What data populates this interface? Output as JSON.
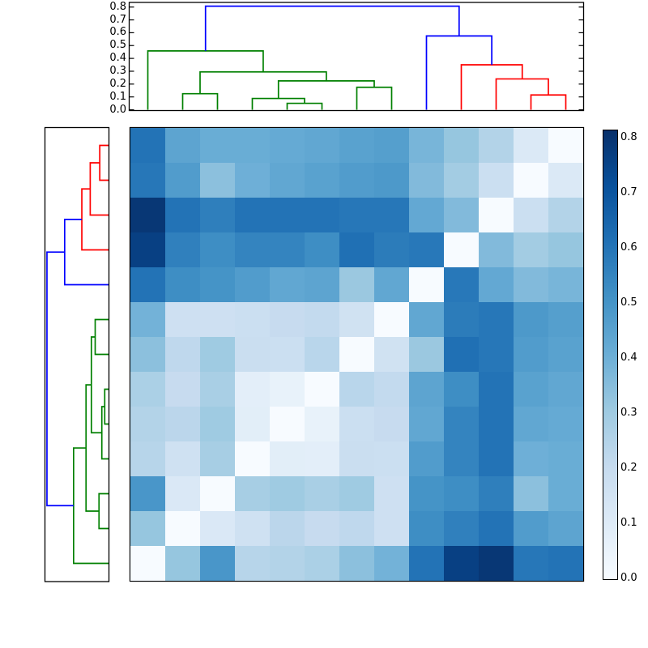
{
  "figure_type": "clustered-distance-heatmap",
  "colors": {
    "background": "#ffffff",
    "frame": "#000000",
    "link_blue": "#0000ff",
    "link_green": "#008000",
    "link_red": "#ff0000"
  },
  "top_axis": {
    "tick_values": [
      0.0,
      0.1,
      0.2,
      0.3,
      0.4,
      0.5,
      0.6,
      0.7,
      0.8
    ],
    "tick_labels": [
      "0.0",
      "0.1",
      "0.2",
      "0.3",
      "0.4",
      "0.5",
      "0.6",
      "0.7",
      "0.8"
    ]
  },
  "colorbar": {
    "tick_values": [
      0.0,
      0.1,
      0.2,
      0.3,
      0.4,
      0.5,
      0.6,
      0.7,
      0.8
    ],
    "tick_labels": [
      "0.0",
      "0.1",
      "0.2",
      "0.3",
      "0.4",
      "0.5",
      "0.6",
      "0.7",
      "0.8"
    ],
    "vmin": 0.0,
    "vmax": 0.81,
    "colormap": "Blues"
  },
  "chart_data": {
    "type": "heatmap",
    "title": "",
    "xlabel": "",
    "ylabel": "",
    "colormap": "Blues",
    "vmin": 0.0,
    "vmax": 0.81,
    "grid": false,
    "colormap_stops": [
      [
        247,
        251,
        255
      ],
      [
        222,
        235,
        247
      ],
      [
        198,
        219,
        239
      ],
      [
        158,
        202,
        225
      ],
      [
        107,
        174,
        214
      ],
      [
        66,
        146,
        198
      ],
      [
        33,
        113,
        181
      ],
      [
        8,
        81,
        156
      ],
      [
        8,
        48,
        107
      ]
    ],
    "n_leaves": 13,
    "col_leaf_order": [
      0,
      1,
      2,
      3,
      4,
      5,
      6,
      7,
      8,
      9,
      10,
      11,
      12
    ],
    "row_leaf_order": [
      12,
      11,
      10,
      9,
      8,
      7,
      6,
      5,
      4,
      3,
      2,
      1,
      0
    ],
    "distance_matrix": [
      [
        0.0,
        0.32,
        0.49,
        0.24,
        0.25,
        0.27,
        0.34,
        0.39,
        0.6,
        0.76,
        0.79,
        0.59,
        0.6
      ],
      [
        0.32,
        0.0,
        0.12,
        0.165,
        0.23,
        0.2,
        0.22,
        0.17,
        0.52,
        0.56,
        0.6,
        0.47,
        0.44
      ],
      [
        0.49,
        0.12,
        0.0,
        0.28,
        0.3,
        0.275,
        0.3,
        0.17,
        0.5,
        0.52,
        0.565,
        0.34,
        0.41
      ],
      [
        0.24,
        0.165,
        0.28,
        0.0,
        0.085,
        0.08,
        0.185,
        0.18,
        0.47,
        0.55,
        0.6,
        0.4,
        0.41
      ],
      [
        0.25,
        0.23,
        0.3,
        0.085,
        0.0,
        0.06,
        0.18,
        0.2,
        0.43,
        0.55,
        0.6,
        0.43,
        0.42
      ],
      [
        0.27,
        0.2,
        0.275,
        0.08,
        0.06,
        0.0,
        0.235,
        0.21,
        0.44,
        0.52,
        0.6,
        0.45,
        0.43
      ],
      [
        0.34,
        0.22,
        0.3,
        0.185,
        0.18,
        0.235,
        0.0,
        0.16,
        0.31,
        0.61,
        0.59,
        0.47,
        0.45
      ],
      [
        0.39,
        0.17,
        0.17,
        0.18,
        0.2,
        0.21,
        0.16,
        0.0,
        0.43,
        0.575,
        0.59,
        0.48,
        0.46
      ],
      [
        0.6,
        0.52,
        0.5,
        0.47,
        0.43,
        0.44,
        0.31,
        0.43,
        0.0,
        0.585,
        0.425,
        0.36,
        0.38
      ],
      [
        0.76,
        0.56,
        0.52,
        0.55,
        0.55,
        0.52,
        0.61,
        0.575,
        0.585,
        0.0,
        0.36,
        0.29,
        0.32
      ],
      [
        0.79,
        0.6,
        0.565,
        0.6,
        0.6,
        0.6,
        0.59,
        0.59,
        0.425,
        0.36,
        0.0,
        0.18,
        0.25
      ],
      [
        0.59,
        0.47,
        0.34,
        0.4,
        0.43,
        0.45,
        0.47,
        0.48,
        0.36,
        0.29,
        0.18,
        0.0,
        0.115
      ],
      [
        0.6,
        0.44,
        0.41,
        0.41,
        0.42,
        0.43,
        0.45,
        0.46,
        0.38,
        0.32,
        0.25,
        0.115,
        0.0
      ]
    ],
    "dendrogram_tree": {
      "h": 0.807,
      "color": "#0000ff",
      "children": [
        {
          "h": 0.458,
          "color": "#008000",
          "children": [
            {
              "leaf": 0
            },
            {
              "h": 0.295,
              "color": "#008000",
              "children": [
                {
                  "h": 0.125,
                  "color": "#008000",
                  "children": [
                    {
                      "leaf": 1
                    },
                    {
                      "leaf": 2
                    }
                  ]
                },
                {
                  "h": 0.225,
                  "color": "#008000",
                  "children": [
                    {
                      "h": 0.088,
                      "color": "#008000",
                      "children": [
                        {
                          "leaf": 3
                        },
                        {
                          "h": 0.05,
                          "color": "#008000",
                          "children": [
                            {
                              "leaf": 4
                            },
                            {
                              "leaf": 5
                            }
                          ]
                        }
                      ]
                    },
                    {
                      "h": 0.175,
                      "color": "#008000",
                      "children": [
                        {
                          "leaf": 6
                        },
                        {
                          "leaf": 7
                        }
                      ]
                    }
                  ]
                }
              ]
            }
          ]
        },
        {
          "h": 0.575,
          "color": "#0000ff",
          "children": [
            {
              "leaf": 8
            },
            {
              "h": 0.35,
              "color": "#ff0000",
              "children": [
                {
                  "leaf": 9
                },
                {
                  "h": 0.24,
                  "color": "#ff0000",
                  "children": [
                    {
                      "leaf": 10
                    },
                    {
                      "h": 0.115,
                      "color": "#ff0000",
                      "children": [
                        {
                          "leaf": 11
                        },
                        {
                          "leaf": 12
                        }
                      ]
                    }
                  ]
                }
              ]
            }
          ]
        }
      ]
    },
    "left_dendrogram": {
      "mirrors_top": true,
      "leaf_order": "reversed"
    },
    "legend": null,
    "axis_ranges": {
      "dendrogram_axis": [
        0.0,
        0.835
      ],
      "colorbar_axis": [
        0.0,
        0.81
      ]
    }
  }
}
